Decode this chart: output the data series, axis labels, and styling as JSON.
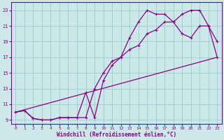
{
  "xlabel": "Windchill (Refroidissement éolien,°C)",
  "bg_color": "#cce8e8",
  "grid_color": "#99cccc",
  "line_color": "#880088",
  "xlim": [
    -0.5,
    23.5
  ],
  "ylim": [
    8.5,
    24
  ],
  "xticks": [
    0,
    1,
    2,
    3,
    4,
    5,
    6,
    7,
    8,
    9,
    10,
    11,
    12,
    13,
    14,
    15,
    16,
    17,
    18,
    19,
    20,
    21,
    22,
    23
  ],
  "yticks": [
    9,
    11,
    13,
    15,
    17,
    19,
    21,
    23
  ],
  "line1_x": [
    0,
    1,
    2,
    3,
    4,
    5,
    6,
    7,
    8,
    9,
    10,
    11,
    12,
    13,
    14,
    15,
    16,
    17,
    18,
    19,
    20,
    21,
    22,
    23
  ],
  "line1_y": [
    10,
    10.2,
    9.2,
    9,
    9,
    9.3,
    9.3,
    9.3,
    9.3,
    13,
    15,
    16.5,
    17,
    18,
    18.5,
    20,
    20.5,
    21.5,
    21.5,
    22.5,
    23,
    23,
    21,
    17
  ],
  "line2_x": [
    0,
    1,
    2,
    3,
    4,
    5,
    6,
    7,
    8,
    9,
    10,
    11,
    12,
    13,
    14,
    15,
    16,
    17,
    18,
    19,
    20,
    21,
    22,
    23
  ],
  "line2_y": [
    10,
    10.2,
    9.2,
    9,
    9,
    9.3,
    9.3,
    9.3,
    12.5,
    9.3,
    14,
    16,
    17,
    19.5,
    21.5,
    23,
    22.5,
    22.5,
    21.5,
    20,
    19.5,
    21,
    21,
    19
  ],
  "line3_x": [
    0,
    23
  ],
  "line3_y": [
    10,
    17
  ]
}
